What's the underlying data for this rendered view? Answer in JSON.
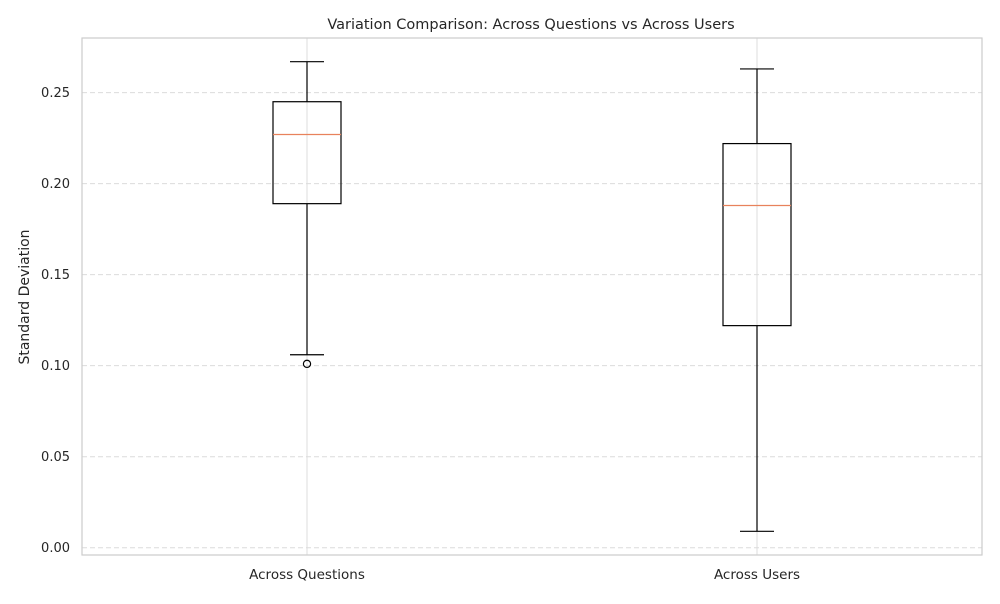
{
  "chart_data": {
    "type": "box",
    "title": "Variation Comparison: Across Questions vs Across Users",
    "xlabel": "",
    "ylabel": "Standard Deviation",
    "ylim": [
      -0.004,
      0.28
    ],
    "yticks": [
      0.0,
      0.05,
      0.1,
      0.15,
      0.2,
      0.25
    ],
    "ytick_labels": [
      "0.00",
      "0.05",
      "0.10",
      "0.15",
      "0.20",
      "0.25"
    ],
    "grid": {
      "y": true,
      "y_style": "dashed",
      "x": true,
      "x_style": "solid"
    },
    "categories": [
      "Across Questions",
      "Across Users"
    ],
    "boxes": [
      {
        "category": "Across Questions",
        "whisker_low": 0.106,
        "q1": 0.189,
        "median": 0.227,
        "q3": 0.245,
        "whisker_high": 0.267,
        "outliers": [
          0.101
        ]
      },
      {
        "category": "Across Users",
        "whisker_low": 0.009,
        "q1": 0.122,
        "median": 0.188,
        "q3": 0.222,
        "whisker_high": 0.263,
        "outliers": []
      }
    ],
    "colors": {
      "box": "#000000",
      "median": "#e8825c",
      "grid": "#dcdcdc",
      "spine": "#cccccc",
      "background": "#ffffff"
    }
  }
}
